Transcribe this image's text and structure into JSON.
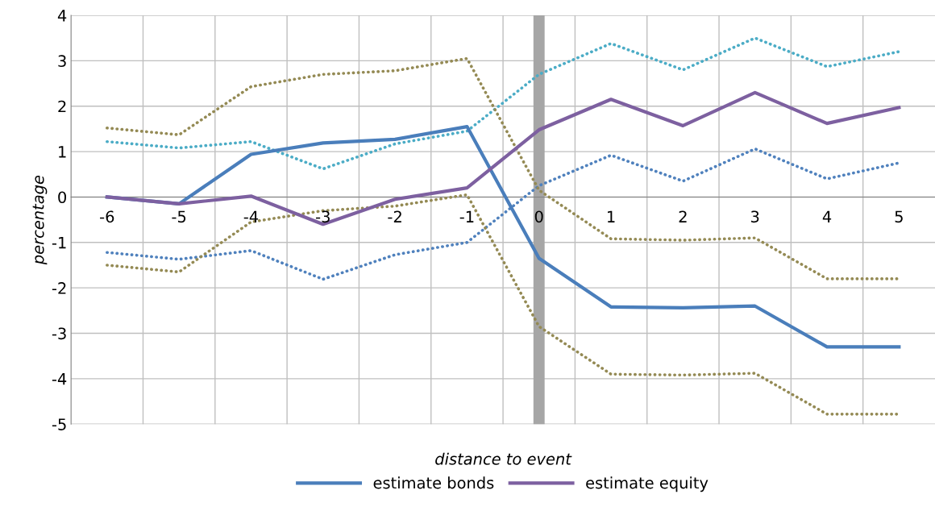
{
  "chart_data": {
    "type": "line",
    "xlabel": "distance to event",
    "ylabel": "percentage",
    "x": [
      -6,
      -5,
      -4,
      -3,
      -2,
      -1,
      0,
      1,
      2,
      3,
      4,
      5
    ],
    "xlim": [
      -6.5,
      5.5
    ],
    "xticks": [
      -6,
      -5,
      -4,
      -3,
      -2,
      -1,
      0,
      1,
      2,
      3,
      4,
      5
    ],
    "ylim": [
      -5,
      4
    ],
    "yticks": [
      -5,
      -4,
      -3,
      -2,
      -1,
      0,
      1,
      2,
      3,
      4
    ],
    "grid": true,
    "legend": "bottom",
    "marker": "none",
    "ref_lines": [
      {
        "axis": "x",
        "value": 0,
        "color": "#a6a6a6"
      }
    ],
    "series": [
      {
        "color": "#4bacc6",
        "line_style": "dotted",
        "values": [
          1.22,
          1.08,
          1.22,
          0.62,
          1.17,
          1.45,
          2.7,
          3.38,
          2.8,
          3.5,
          2.87,
          3.2
        ]
      },
      {
        "color": "#4f81bd",
        "line_style": "dotted",
        "values": [
          -1.22,
          -1.37,
          -1.18,
          -1.81,
          -1.27,
          -1.0,
          0.25,
          0.92,
          0.35,
          1.06,
          0.4,
          0.75
        ]
      },
      {
        "color": "#948a54",
        "line_style": "dotted",
        "values": [
          1.52,
          1.37,
          2.43,
          2.7,
          2.78,
          3.05,
          0.15,
          -0.92,
          -0.95,
          -0.9,
          -1.8,
          -1.8
        ]
      },
      {
        "color": "#948a54",
        "line_style": "dotted",
        "values": [
          -1.5,
          -1.65,
          -0.55,
          -0.3,
          -0.2,
          0.05,
          -2.85,
          -3.9,
          -3.92,
          -3.88,
          -4.78,
          -4.78
        ]
      },
      {
        "name": "estimate bonds",
        "color": "#4a7ebb",
        "line_style": "solid",
        "values": [
          0,
          -0.15,
          0.94,
          1.19,
          1.27,
          1.55,
          -1.35,
          -2.42,
          -2.44,
          -2.4,
          -3.3,
          -3.3
        ]
      },
      {
        "name": "estimate equity",
        "color": "#7d60a0",
        "line_style": "solid",
        "values": [
          0,
          -0.15,
          0.02,
          -0.6,
          -0.05,
          0.2,
          1.48,
          2.15,
          1.57,
          2.3,
          1.62,
          1.97
        ]
      }
    ]
  }
}
